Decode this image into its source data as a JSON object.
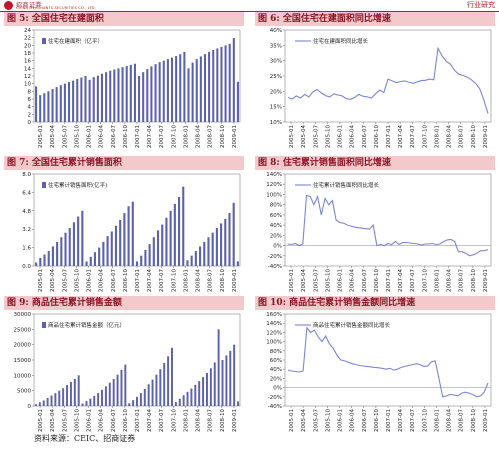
{
  "header": {
    "brand_cn": "招商证券",
    "brand_en": "CHINA MERCHANTS SECURITIES CO., LTD.",
    "right_text": "行业研究"
  },
  "source": "资料来源：CEIC、招商证券",
  "colors": {
    "bar": "#5b62a8",
    "line": "#7b86d6",
    "title_bg": "#f3c9cb",
    "title_text": "#8a1525"
  },
  "x_labels": [
    "2005-01",
    "2005-04",
    "2005-07",
    "2005-10",
    "2006-01",
    "2006-04",
    "2006-07",
    "2006-10",
    "2007-01",
    "2007-04",
    "2007-07",
    "2007-10",
    "2008-01",
    "2008-04",
    "2008-07",
    "2008-10",
    "2009-01"
  ],
  "chart_data": [
    {
      "type": "bar",
      "title": "图 5: 全国住宅在建面积",
      "legend": "住宅在建面积（亿平）",
      "ylim": [
        0,
        24
      ],
      "yticks": [
        0,
        2,
        4,
        6,
        8,
        10,
        12,
        14,
        16,
        18,
        20,
        22,
        24
      ],
      "values": [
        9.3,
        7.0,
        7.5,
        8.0,
        8.6,
        9.1,
        9.6,
        10.0,
        10.4,
        10.8,
        11.2,
        11.6,
        12.0,
        11.0,
        11.7,
        12.1,
        12.6,
        13.0,
        13.4,
        13.7,
        14.0,
        14.3,
        14.6,
        14.9,
        15.2,
        12.0,
        13.0,
        13.8,
        14.5,
        15.1,
        15.6,
        16.0,
        16.4,
        16.8,
        17.2,
        17.7,
        18.3,
        14.0,
        15.5,
        16.4,
        17.1,
        17.7,
        18.3,
        18.8,
        19.2,
        19.6,
        20.0,
        20.4,
        21.9,
        10.5
      ]
    },
    {
      "type": "line",
      "title": "图 6: 全国住宅在建面积同比增速",
      "legend": "住宅在建面积同比增长",
      "ylim": [
        10,
        40
      ],
      "yticks": [
        "10%",
        "15%",
        "20%",
        "25%",
        "30%",
        "35%",
        "40%"
      ],
      "tick_values": [
        10,
        15,
        20,
        25,
        30,
        35,
        40
      ],
      "values": [
        18.0,
        17.5,
        18.5,
        17.8,
        19.0,
        18.2,
        19.8,
        20.6,
        19.5,
        18.6,
        18.2,
        19.2,
        18.8,
        18.5,
        17.6,
        17.4,
        18.0,
        19.0,
        18.4,
        18.2,
        17.8,
        19.2,
        20.4,
        19.6,
        24.0,
        23.4,
        22.8,
        23.2,
        23.4,
        23.0,
        22.6,
        23.1,
        23.5,
        23.6,
        24.0,
        23.8,
        34.0,
        31.5,
        29.8,
        28.8,
        26.8,
        25.6,
        25.2,
        24.6,
        23.8,
        22.6,
        20.9,
        17.2,
        12.8
      ]
    },
    {
      "type": "bar",
      "title": "图 7: 全国住宅累计销售面积",
      "legend": "住宅累计销售面积(亿平)",
      "ylim": [
        0,
        8.0
      ],
      "yticks": [
        "0.0",
        "1.6",
        "3.2",
        "4.8",
        "6.4",
        "8.0"
      ],
      "tick_values": [
        0,
        1.6,
        3.2,
        4.8,
        6.4,
        8.0
      ],
      "values": [
        0.3,
        0.7,
        1.0,
        1.3,
        1.7,
        2.1,
        2.5,
        2.9,
        3.3,
        3.8,
        4.3,
        4.8,
        0.4,
        0.8,
        1.2,
        1.6,
        2.1,
        2.6,
        3.0,
        3.5,
        4.0,
        4.6,
        5.2,
        5.6,
        0.4,
        0.9,
        1.4,
        1.9,
        2.5,
        3.1,
        3.6,
        4.2,
        4.8,
        5.4,
        6.0,
        6.9,
        0.5,
        0.9,
        1.3,
        1.7,
        2.1,
        2.5,
        2.9,
        3.3,
        3.7,
        4.1,
        4.6,
        5.5,
        0.4
      ]
    },
    {
      "type": "line",
      "title": "图 8: 住宅累计销售面积同比增速",
      "legend": "住宅累计销售面积同比增长",
      "ylim": [
        -40,
        140
      ],
      "yticks": [
        "-40%",
        "-20%",
        "0%",
        "20%",
        "40%",
        "60%",
        "80%",
        "100%",
        "120%",
        "140%"
      ],
      "tick_values": [
        -40,
        -20,
        0,
        20,
        40,
        60,
        80,
        100,
        120,
        140
      ],
      "values": [
        3,
        2,
        4,
        0,
        3,
        98,
        96,
        80,
        96,
        60,
        92,
        80,
        88,
        50,
        45,
        44,
        40,
        38,
        36,
        35,
        34,
        33,
        32,
        40,
        0,
        2,
        0,
        4,
        2,
        8,
        2,
        6,
        6,
        5,
        4,
        3,
        1,
        3,
        3,
        4,
        2,
        3,
        8,
        11,
        12,
        8,
        -12,
        -12,
        -15,
        -20,
        -18,
        -15,
        -10,
        -10,
        -8
      ]
    },
    {
      "type": "bar",
      "title": "图 9: 商品住宅累计销售金额",
      "legend": "商品住宅累计销售金额（亿元）",
      "ylim": [
        0,
        30000
      ],
      "yticks": [
        "0",
        "5000",
        "10000",
        "15000",
        "20000",
        "25000",
        "30000"
      ],
      "tick_values": [
        0,
        5000,
        10000,
        15000,
        20000,
        25000,
        30000
      ],
      "values": [
        600,
        1200,
        1800,
        2600,
        3400,
        4200,
        5000,
        5800,
        6800,
        7800,
        8800,
        10000,
        800,
        1600,
        2400,
        3300,
        4200,
        5300,
        6400,
        7600,
        8800,
        10200,
        11800,
        13500,
        900,
        1900,
        3000,
        4200,
        5600,
        7100,
        8600,
        10200,
        12000,
        14000,
        16200,
        19000,
        1300,
        2400,
        3500,
        4600,
        5700,
        6900,
        8100,
        9400,
        10800,
        12300,
        14200,
        25000,
        15000,
        16500,
        18000,
        20000,
        1500
      ]
    },
    {
      "type": "line",
      "title": "图 10: 商品住宅累计销售金额同比增速",
      "legend": "商品住宅累计销售金额同比增长",
      "ylim": [
        -40,
        160
      ],
      "yticks": [
        "-40%",
        "-20%",
        "0%",
        "20%",
        "40%",
        "60%",
        "80%",
        "100%",
        "120%",
        "140%",
        "160%"
      ],
      "tick_values": [
        -40,
        -20,
        0,
        20,
        40,
        60,
        80,
        100,
        120,
        140,
        160
      ],
      "values": [
        38,
        36,
        35,
        34,
        36,
        130,
        120,
        125,
        110,
        100,
        112,
        95,
        85,
        70,
        60,
        58,
        55,
        52,
        50,
        48,
        47,
        46,
        45,
        44,
        43,
        42,
        40,
        42,
        38,
        40,
        44,
        46,
        48,
        50,
        52,
        50,
        46,
        47,
        56,
        58,
        20,
        -20,
        -18,
        -15,
        -16,
        -18,
        -12,
        -10,
        -12,
        -15,
        -20,
        -18,
        -10,
        10
      ]
    }
  ]
}
